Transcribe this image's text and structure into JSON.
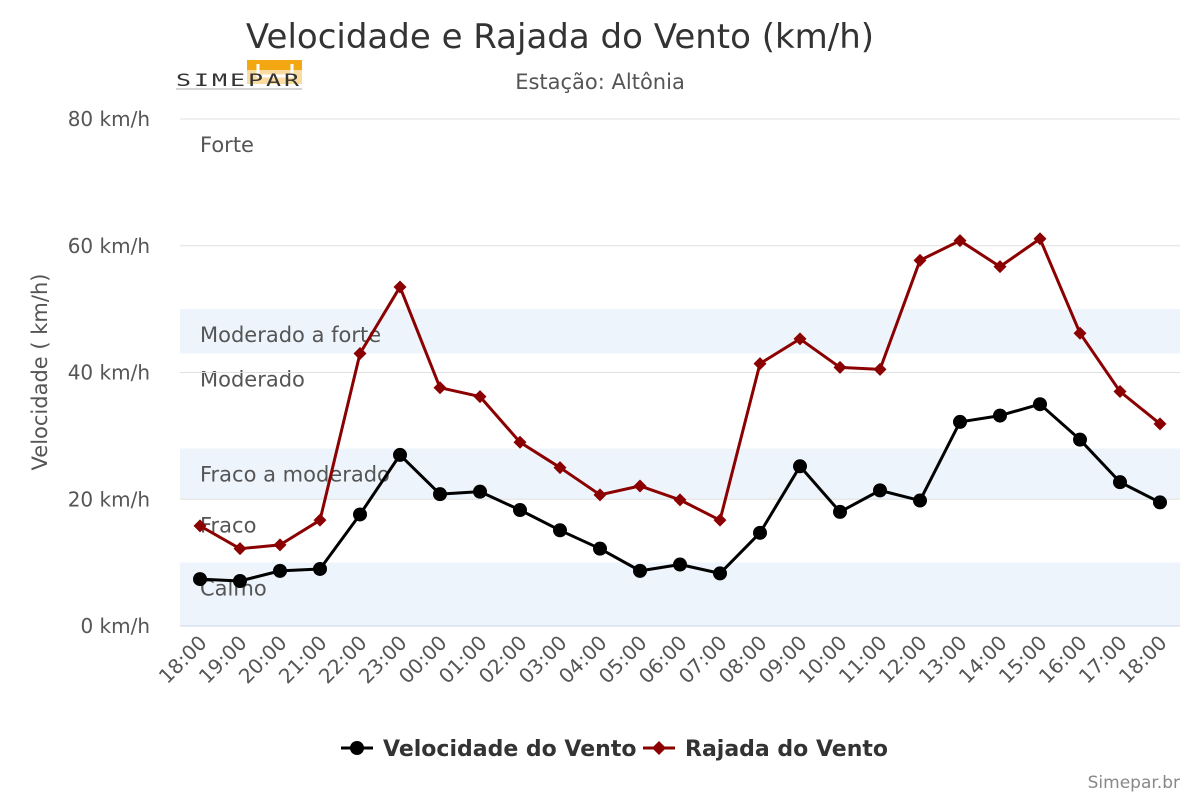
{
  "header": {
    "title": "Velocidade e Rajada do Vento (km/h)",
    "subtitle": "Estação: Altônia",
    "logo_text": "SIMEPAR"
  },
  "credit": "Simepar.br",
  "colors": {
    "speed": "#000000",
    "gust": "#8b0000",
    "band": "#edf4fb",
    "grid": "#e0e0e0"
  },
  "chart_data": {
    "type": "line",
    "title": "Velocidade e Rajada do Vento (km/h)",
    "subtitle": "Estação: Altônia",
    "ylabel": "Velocidade ( km/h)",
    "xlabel": "",
    "ylim": [
      0,
      80
    ],
    "yticks": [
      0,
      20,
      40,
      60,
      80
    ],
    "ytick_labels": [
      "0 km/h",
      "20 km/h",
      "40 km/h",
      "60 km/h",
      "80 km/h"
    ],
    "grid": true,
    "legend_position": "bottom-center",
    "categories": [
      "18:00",
      "19:00",
      "20:00",
      "21:00",
      "22:00",
      "23:00",
      "00:00",
      "01:00",
      "02:00",
      "03:00",
      "04:00",
      "05:00",
      "06:00",
      "07:00",
      "08:00",
      "09:00",
      "10:00",
      "11:00",
      "12:00",
      "13:00",
      "14:00",
      "15:00",
      "16:00",
      "17:00",
      "18:00"
    ],
    "series": [
      {
        "name": "Velocidade do Vento",
        "marker": "circle",
        "values": [
          7.4,
          7.1,
          8.7,
          9.0,
          17.6,
          27.0,
          20.8,
          21.2,
          18.3,
          15.1,
          12.2,
          8.7,
          9.7,
          8.3,
          14.7,
          25.2,
          18.0,
          21.4,
          19.8,
          32.2,
          33.2,
          35.0,
          29.4,
          22.7,
          19.5
        ]
      },
      {
        "name": "Rajada do Vento",
        "marker": "diamond",
        "values": [
          15.8,
          12.2,
          12.8,
          16.7,
          43.0,
          53.5,
          37.6,
          36.2,
          29.0,
          25.0,
          20.7,
          22.1,
          19.9,
          16.7,
          41.4,
          45.3,
          40.8,
          40.5,
          57.7,
          60.8,
          56.7,
          61.1,
          46.2,
          37.0,
          31.9
        ]
      }
    ],
    "bands": [
      {
        "label": "Calmo",
        "from": 0,
        "to": 10,
        "shaded": true
      },
      {
        "label": "Fraco",
        "from": 10,
        "to": 20,
        "shaded": false
      },
      {
        "label": "Fraco a moderado",
        "from": 20,
        "to": 28,
        "shaded": true
      },
      {
        "label": "Moderado",
        "from": 28,
        "to": 43,
        "shaded": false
      },
      {
        "label": "Moderado a forte",
        "from": 43,
        "to": 50,
        "shaded": true
      },
      {
        "label": "Forte",
        "from": 50,
        "to": 80,
        "shaded": false
      }
    ]
  }
}
